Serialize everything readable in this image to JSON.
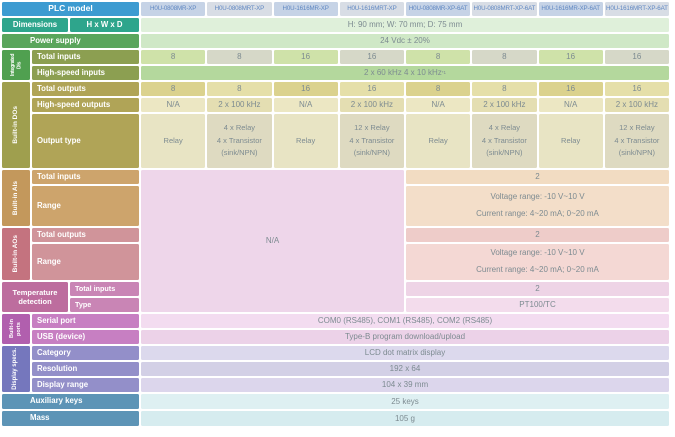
{
  "title": "PLC model specification table",
  "header": {
    "plc_model_label": "PLC model",
    "models": [
      "H0U-0808MR-XP",
      "H0U-0808MRT-XP",
      "H0U-1616MR-XP",
      "H0U-1616MRT-XP",
      "H0U-0808MR-XP-6AT",
      "H0U-0808MRT-XP-6AT",
      "H0U-1616MR-XP-6AT",
      "H0U-1616MRT-XP-6AT"
    ]
  },
  "dimensions": {
    "group_label": "Dimensions",
    "sub_label": "H x W x D",
    "value": "H: 90 mm; W: 70 mm; D: 75 mm"
  },
  "power_supply": {
    "label": "Power supply",
    "value": "24 Vdc ±  20%"
  },
  "integrated_dis": {
    "group_label": "Integrated DIs",
    "total_inputs": {
      "label": "Total inputs",
      "values": [
        "8",
        "8",
        "16",
        "16",
        "8",
        "8",
        "16",
        "16"
      ]
    },
    "high_speed_inputs": {
      "label": "High-speed inputs",
      "value": "2 x 60 kHz 4 x 10 kHz",
      "note": "*1"
    }
  },
  "built_in_dos": {
    "group_label": "Built-in DOs",
    "total_outputs": {
      "label": "Total outputs",
      "values": [
        "8",
        "8",
        "16",
        "16",
        "8",
        "8",
        "16",
        "16"
      ]
    },
    "high_speed_outputs": {
      "label": "High-speed outputs",
      "values": [
        "N/A",
        "2 x 100 kHz",
        "N/A",
        "2 x 100 kHz",
        "N/A",
        "2 x 100 kHz",
        "N/A",
        "2 x 100 kHz"
      ]
    },
    "output_type": {
      "label": "Output type",
      "values": [
        "Relay",
        "4 x Relay\n4 x Transistor\n(sink/NPN)",
        "Relay",
        "12 x Relay\n4 x Transistor\n(sink/NPN)",
        "Relay",
        "4 x Relay\n4 x Transistor\n(sink/NPN)",
        "Relay",
        "12 x Relay\n4 x Transistor\n(sink/NPN)"
      ]
    }
  },
  "analog_na": {
    "value": "N/A"
  },
  "built_in_ais": {
    "group_label": "Built-in AIs",
    "total_inputs": {
      "label": "Total inputs",
      "value": "2"
    },
    "range": {
      "label": "Range",
      "value": "Voltage range: -10 V~10 V\nCurrent range: 4~20 mA; 0~20 mA"
    }
  },
  "built_in_aos": {
    "group_label": "Built-in AOs",
    "total_outputs": {
      "label": "Total outputs",
      "value": "2"
    },
    "range": {
      "label": "Range",
      "value": "Voltage range: -10 V~10 V\nCurrent range: 4~20 mA; 0~20 mA"
    }
  },
  "temperature_detection": {
    "group_label": "Temperature detection",
    "total_inputs": {
      "label": "Total inputs",
      "value": "2"
    },
    "type": {
      "label": "Type",
      "value": "PT100/TC"
    }
  },
  "built_in_ports": {
    "group_label": "Built-in ports",
    "serial_port": {
      "label": "Serial port",
      "value": "COM0 (RS485), COM1 (RS485), COM2 (RS485)"
    },
    "usb": {
      "label": "USB (device)",
      "value": "Type-B program download/upload"
    }
  },
  "display_specs": {
    "group_label": "Display specs.",
    "category": {
      "label": "Category",
      "value": "LCD dot matrix display"
    },
    "resolution": {
      "label": "Resolution",
      "value": "192 x 64"
    },
    "display_range": {
      "label": "Display range",
      "value": "104 x 39 mm"
    }
  },
  "auxiliary_keys": {
    "label": "Auxiliary keys",
    "value": "25 keys"
  },
  "mass": {
    "label": "Mass",
    "value": "105 g"
  },
  "colors": {
    "header_blue": "#3d9bd1",
    "dimensions_teal": "#2ea58c",
    "power_green": "#5aa55c",
    "di_olive": "#8c9f51",
    "do_gold": "#b0a457",
    "ai_tan": "#c3985c",
    "ao_rose": "#c4737f",
    "temp_mauve": "#bd6d9e",
    "ports_purple": "#b15fae",
    "display_violet": "#7577bd",
    "aux_steel_blue": "#5d94b6"
  }
}
